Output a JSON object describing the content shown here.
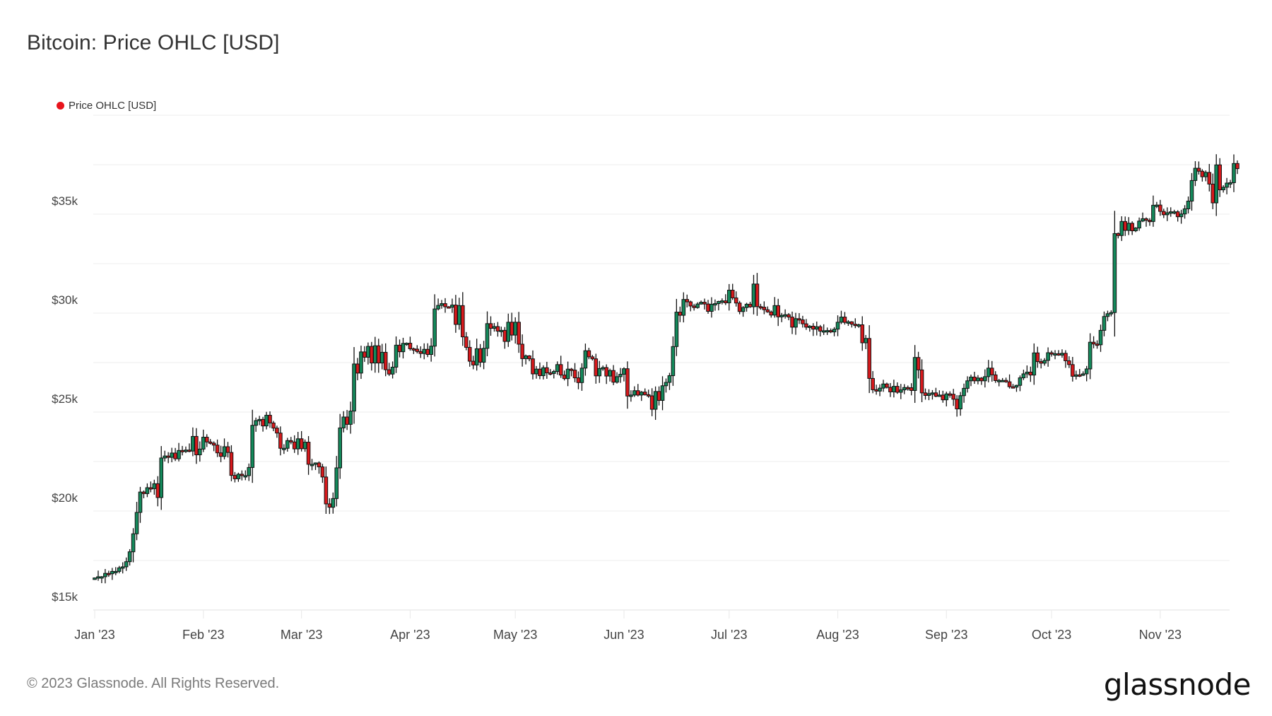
{
  "header": {
    "title": "Bitcoin: Price OHLC [USD]"
  },
  "legend": {
    "label": "Price OHLC [USD]",
    "color": "#e8141c"
  },
  "footer": {
    "copyright": "© 2023 Glassnode. All Rights Reserved.",
    "brand": "glassnode"
  },
  "colors": {
    "up": "#14895b",
    "down": "#d7191c",
    "outline": "#111111",
    "grid": "#f0f0f0"
  },
  "yaxis": {
    "ticks": [
      {
        "value": 15000,
        "label": "$15k"
      },
      {
        "value": 20000,
        "label": "$20k"
      },
      {
        "value": 25000,
        "label": "$25k"
      },
      {
        "value": 30000,
        "label": "$30k"
      },
      {
        "value": 35000,
        "label": "$35k"
      }
    ]
  },
  "xaxis": {
    "ticks": [
      {
        "day": 0,
        "label": "Jan '23"
      },
      {
        "day": 31,
        "label": "Feb '23"
      },
      {
        "day": 59,
        "label": "Mar '23"
      },
      {
        "day": 90,
        "label": "Apr '23"
      },
      {
        "day": 120,
        "label": "May '23"
      },
      {
        "day": 151,
        "label": "Jun '23"
      },
      {
        "day": 181,
        "label": "Jul '23"
      },
      {
        "day": 212,
        "label": "Aug '23"
      },
      {
        "day": 243,
        "label": "Sep '23"
      },
      {
        "day": 273,
        "label": "Oct '23"
      },
      {
        "day": 304,
        "label": "Nov '23"
      }
    ]
  },
  "chart_data": {
    "type": "candlestick",
    "title": "Bitcoin: Price OHLC [USD]",
    "xlabel": "",
    "ylabel": "",
    "ylim": [
      15000,
      40000
    ],
    "x_range": [
      "2023-01-01",
      "2023-11-20"
    ],
    "grid": true,
    "legend_position": "top-left",
    "series": [
      {
        "name": "Price OHLC [USD]",
        "closes_daily": [
          16620,
          16680,
          16680,
          16850,
          16830,
          16950,
          16950,
          17130,
          17180,
          17440,
          17940,
          18850,
          19930,
          20960,
          20880,
          21180,
          21130,
          21380,
          20680,
          22680,
          22780,
          22710,
          22930,
          22640,
          23060,
          23010,
          23080,
          23030,
          23770,
          22840,
          23130,
          23730,
          23490,
          23430,
          23330,
          22940,
          22760,
          23250,
          22960,
          21800,
          21630,
          21860,
          21790,
          21790,
          22200,
          24330,
          24570,
          24630,
          24300,
          24840,
          24450,
          24190,
          23940,
          23170,
          23170,
          23560,
          23490,
          23140,
          23650,
          23150,
          23480,
          22360,
          22360,
          22430,
          22230,
          21720,
          20360,
          20190,
          20630,
          22180,
          24200,
          24750,
          24380,
          25050,
          27430,
          26970,
          28040,
          27770,
          28320,
          27480,
          28350,
          27480,
          28020,
          27140,
          26920,
          27270,
          28380,
          28050,
          28470,
          28480,
          28200,
          28180,
          28060,
          27960,
          28170,
          27910,
          28330,
          30210,
          30390,
          30480,
          30320,
          30300,
          30410,
          29430,
          30380,
          28800,
          28270,
          27570,
          27380,
          28200,
          27520,
          28220,
          29470,
          29230,
          29320,
          29090,
          29130,
          28570,
          29540,
          28890,
          29540,
          28430,
          27700,
          27840,
          27690,
          26930,
          27170,
          26840,
          27240,
          26980,
          26950,
          27050,
          27400,
          26870,
          26690,
          27170,
          27120,
          26730,
          26490,
          27220,
          28100,
          27790,
          27690,
          26830,
          27200,
          27250,
          26820,
          27100,
          26510,
          26790,
          26910,
          27190,
          25810,
          25860,
          26080,
          25860,
          26010,
          25880,
          25820,
          25140,
          26040,
          25590,
          26330,
          26500,
          26840,
          28310,
          30050,
          29890,
          30690,
          30570,
          30360,
          30280,
          30460,
          30550,
          30460,
          30090,
          30450,
          30480,
          30590,
          30620,
          30520,
          31160,
          30770,
          30510,
          30080,
          30280,
          30450,
          30320,
          31470,
          30330,
          30300,
          30170,
          30060,
          29900,
          30380,
          29810,
          29890,
          29920,
          29800,
          29290,
          29720,
          29660,
          29460,
          29290,
          29340,
          29190,
          29310,
          29090,
          29110,
          29120,
          29050,
          29190,
          29540,
          29800,
          29530,
          29560,
          29440,
          29380,
          29410,
          28500,
          28720,
          26700,
          26130,
          26060,
          26210,
          26420,
          26250,
          26020,
          26300,
          26000,
          26120,
          26240,
          26230,
          26090,
          27760,
          27130,
          25970,
          25840,
          25930,
          25970,
          25800,
          25860,
          25620,
          25920,
          25900,
          25650,
          25160,
          25830,
          26200,
          26580,
          26770,
          26580,
          26720,
          26580,
          26790,
          27220,
          26880,
          26590,
          26600,
          26600,
          26530,
          26280,
          26260,
          26350,
          26730,
          26930,
          27020,
          26870,
          27990,
          27550,
          27470,
          27610,
          28000,
          27930,
          27950,
          27880,
          27970,
          27590,
          27400,
          26810,
          26880,
          26860,
          26930,
          27180,
          28530,
          28440,
          28400,
          29130,
          29830,
          29970,
          30030,
          34020,
          33920,
          34630,
          34180,
          34540,
          34160,
          34300,
          34650,
          34770,
          34690,
          34630,
          35450,
          35460,
          35140,
          34970,
          35070,
          35120,
          35120,
          34870,
          35010,
          35270,
          35660,
          36700,
          37320,
          37170,
          36890,
          37110,
          36520,
          35570,
          37490,
          36230,
          36360,
          36570,
          36590,
          37560,
          37300
        ]
      }
    ]
  }
}
